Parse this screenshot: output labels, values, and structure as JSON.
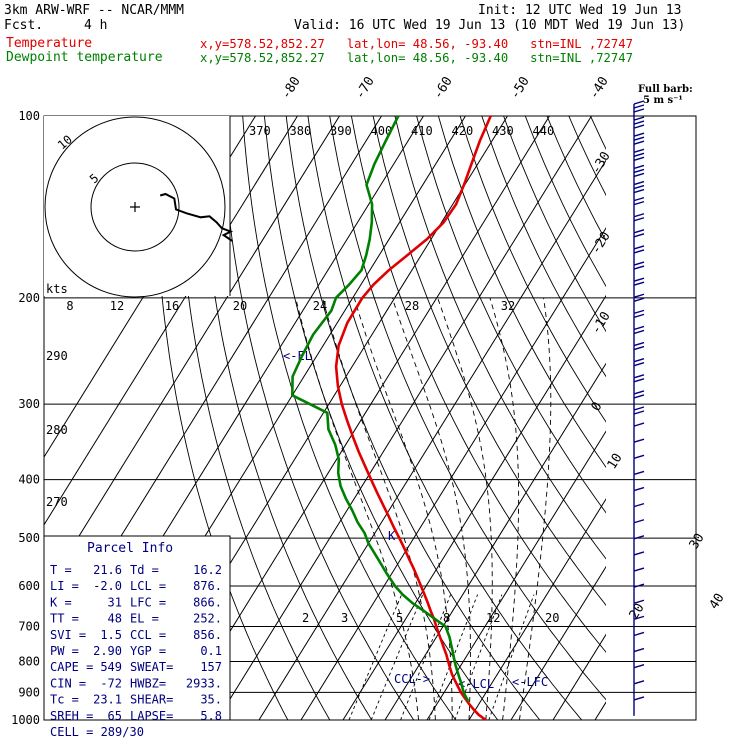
{
  "header": {
    "model": "3km ARW-WRF -- NCAR/MMM",
    "init": "Init: 12 UTC Wed 19 Jun 13",
    "fcst_label": "Fcst.",
    "fcst_value": "4 h",
    "valid": "Valid: 16 UTC Wed 19 Jun 13 (10 MDT Wed 19 Jun 13)",
    "temp_label": "Temperature",
    "dew_label": "Dewpoint temperature",
    "temp_loc": "x,y=578.52,852.27   lat,lon= 48.56, -93.40   stn=INL ,72747",
    "dew_loc": "x,y=578.52,852.27   lat,lon= 48.56, -93.40   stn=INL ,72747"
  },
  "colors": {
    "temperature": "#e00000",
    "dewpoint": "#008000",
    "parcel": "#000080",
    "grid": "#000000"
  },
  "wind_legend": {
    "line1": "Full barb:",
    "line2": "5 m s⁻¹"
  },
  "hodograph": {
    "units": "kts",
    "rings": [
      "8",
      "12",
      "16",
      "20",
      "24",
      "28",
      "32"
    ],
    "ring_labels": [
      "5",
      "10"
    ]
  },
  "annotations": {
    "el": "<-EL",
    "lcl": "<-LCL",
    "lfc": "<-LFC",
    "ccl": "CCL->",
    "k": "K"
  },
  "parcel": {
    "title": "Parcel Info",
    "rows": [
      [
        "T  =",
        "21.6",
        "Td =",
        "16.2"
      ],
      [
        "LI =",
        "-2.0",
        "LCL =",
        "876."
      ],
      [
        "K  =",
        "31",
        "LFC =",
        "866."
      ],
      [
        "TT =",
        "48",
        "EL  =",
        "252."
      ],
      [
        "SVI =",
        "1.5",
        "CCL =",
        "856."
      ],
      [
        "PW =",
        "2.90",
        "YGP =",
        "0.1"
      ],
      [
        "CAPE =",
        "549",
        "SWEAT=",
        "157"
      ],
      [
        "CIN =",
        "-72",
        "HWBZ=",
        "2933."
      ],
      [
        "Tc =",
        "23.1",
        "SHEAR=",
        "35."
      ],
      [
        "SREH =",
        "65",
        "LAPSE=",
        "5.8"
      ]
    ],
    "cell": "CELL = 289/30"
  },
  "chart_data": {
    "type": "line",
    "pressure_levels": [
      100,
      200,
      300,
      400,
      500,
      600,
      700,
      800,
      900,
      1000
    ],
    "pressure_labels": [
      "100",
      "200",
      "300",
      "400",
      "500",
      "600",
      "700",
      "800",
      "900",
      "1000"
    ],
    "isotherm_labels": [
      "-80",
      "-70",
      "-60",
      "-50",
      "-40",
      "-30",
      "-20",
      "-10",
      "0",
      "10",
      "20",
      "30",
      "40"
    ],
    "theta_labels": [
      "370",
      "380",
      "390",
      "400",
      "410",
      "420",
      "430",
      "440"
    ],
    "theta_left_labels": [
      "290",
      "280",
      "270"
    ],
    "mixing_ratio_labels": [
      "2",
      "3",
      "5",
      "8",
      "12",
      "20"
    ],
    "series": [
      {
        "name": "Temperature",
        "pressure": [
          1000,
          980,
          960,
          940,
          920,
          900,
          880,
          860,
          840,
          820,
          800,
          780,
          760,
          740,
          720,
          700,
          680,
          660,
          640,
          620,
          600,
          580,
          560,
          540,
          520,
          500,
          480,
          460,
          440,
          420,
          400,
          380,
          360,
          340,
          320,
          300,
          280,
          260,
          240,
          220,
          200,
          190,
          180,
          170,
          160,
          150,
          140,
          130,
          120,
          110,
          100
        ],
        "temperature": [
          24.0,
          21.5,
          19.5,
          17.6,
          15.8,
          14.0,
          12.4,
          10.8,
          9.2,
          7.8,
          6.4,
          5.0,
          3.4,
          1.8,
          0.1,
          -1.6,
          -3.3,
          -5.2,
          -7.1,
          -9.1,
          -11.2,
          -13.4,
          -15.7,
          -18.2,
          -20.7,
          -23.4,
          -26.3,
          -29.2,
          -32.3,
          -35.5,
          -38.8,
          -42.2,
          -45.8,
          -49.4,
          -53.1,
          -56.9,
          -60.5,
          -63.8,
          -66.3,
          -67.6,
          -67.7,
          -67.0,
          -65.5,
          -63.3,
          -61.0,
          -59.5,
          -59.2,
          -60.2,
          -61.5,
          -62.9,
          -64.0
        ]
      },
      {
        "name": "Dewpoint temperature",
        "pressure": [
          930,
          910,
          890,
          870,
          850,
          830,
          810,
          790,
          770,
          750,
          730,
          700,
          680,
          660,
          640,
          620,
          600,
          570,
          540,
          510,
          490,
          470,
          450,
          430,
          410,
          390,
          370,
          350,
          330,
          310,
          290,
          270,
          250,
          230,
          210,
          200,
          190,
          180,
          170,
          160,
          150,
          140,
          130,
          120,
          110,
          100
        ],
        "temperature": [
          17.0,
          15.4,
          14.0,
          12.8,
          11.4,
          10.0,
          8.6,
          7.3,
          6.0,
          4.6,
          3.2,
          0.6,
          -3.1,
          -6.8,
          -10.8,
          -14.3,
          -17.4,
          -21.5,
          -25.6,
          -30.0,
          -32.5,
          -35.8,
          -38.7,
          -42.0,
          -45.1,
          -47.6,
          -49.5,
          -52.5,
          -56.4,
          -59.1,
          -70.0,
          -72.7,
          -73.5,
          -74.0,
          -73.2,
          -74.0,
          -72.8,
          -72.0,
          -73.1,
          -74.6,
          -76.6,
          -79.2,
          -83.4,
          -84.6,
          -85.3,
          -86.0
        ]
      }
    ],
    "hodograph_trace": [
      [
        0.75,
        0.05
      ],
      [
        1.05,
        -0.1
      ],
      [
        1.55,
        0.35
      ],
      [
        1.65,
        1.45
      ],
      [
        2.25,
        1.85
      ],
      [
        3.05,
        2.25
      ],
      [
        3.55,
        2.15
      ],
      [
        3.95,
        2.75
      ],
      [
        4.25,
        3.35
      ],
      [
        4.75,
        3.7
      ],
      [
        4.35,
        4.05
      ],
      [
        4.85,
        4.65
      ]
    ],
    "wind_barbs": {
      "count": 38
    }
  }
}
